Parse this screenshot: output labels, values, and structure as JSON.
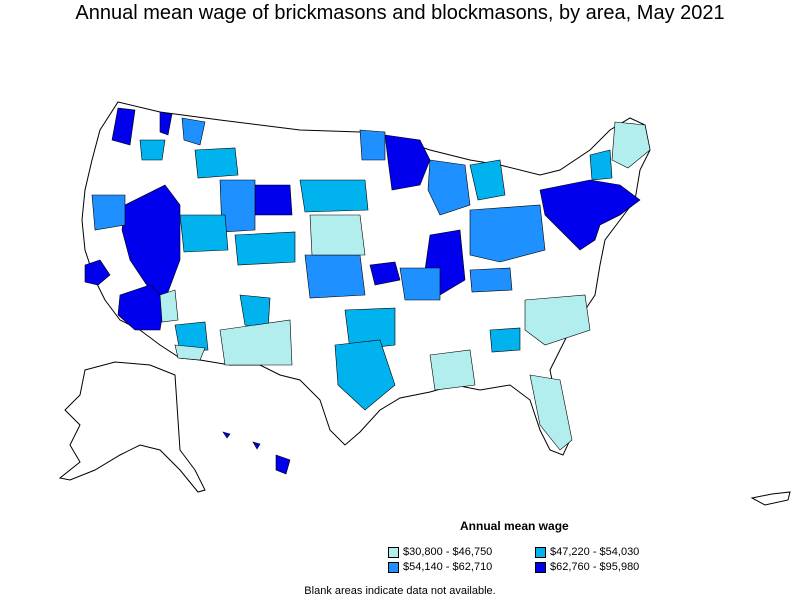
{
  "title": "Annual mean wage of brickmasons and blockmasons, by area, May 2021",
  "legend": {
    "title": "Annual mean wage",
    "items": [
      {
        "label": "$30,800 - $46,750",
        "color": "#b2eeee"
      },
      {
        "label": "$47,220 - $54,030",
        "color": "#00b2ee"
      },
      {
        "label": "$54,140 - $62,710",
        "color": "#1e90ff"
      },
      {
        "label": "$62,760 - $95,980",
        "color": "#0000ee"
      }
    ]
  },
  "footnote": "Blank areas indicate data not available.",
  "colors": {
    "tier1": "#b2eeee",
    "tier2": "#00b2ee",
    "tier3": "#1e90ff",
    "tier4": "#0000ee",
    "blank": "#ffffff",
    "border": "#000000"
  }
}
